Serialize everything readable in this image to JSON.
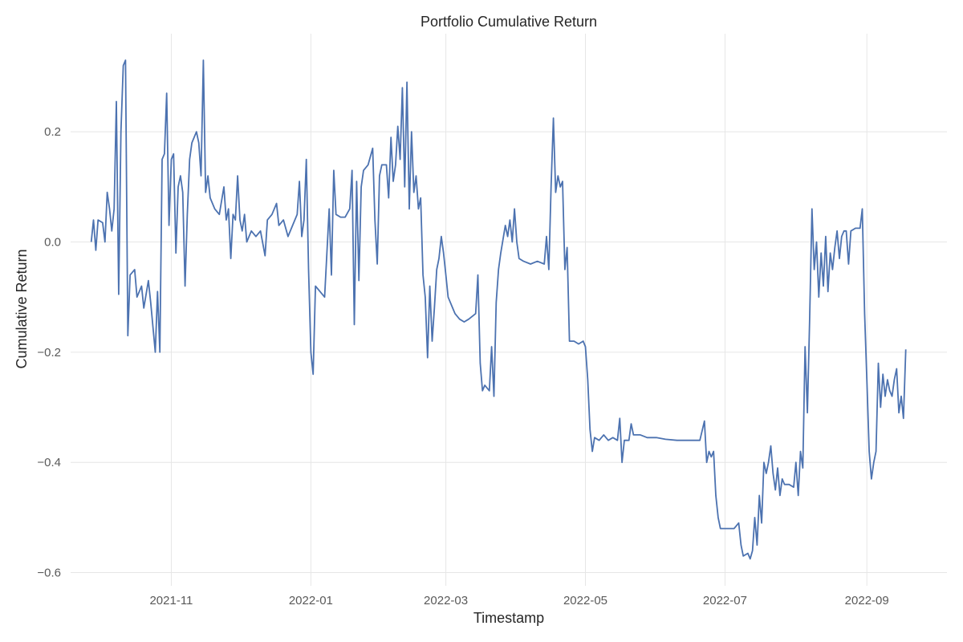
{
  "chart_data": {
    "type": "line",
    "title": "Portfolio Cumulative Return",
    "xlabel": "Timestamp",
    "ylabel": "Cumulative Return",
    "xlim": [
      "2021-09-18",
      "2022-10-06"
    ],
    "ylim": [
      -0.624,
      0.378
    ],
    "x_ticks": [
      "2021-11-01",
      "2022-01-01",
      "2022-03-01",
      "2022-05-01",
      "2022-07-01",
      "2022-09-01"
    ],
    "x_tick_labels": [
      "2021-11",
      "2022-01",
      "2022-03",
      "2022-05",
      "2022-07",
      "2022-09"
    ],
    "y_ticks": [
      0.2,
      0.0,
      -0.2,
      -0.4,
      -0.6
    ],
    "y_tick_labels": [
      "0.2",
      "0.0",
      "−0.2",
      "−0.4",
      "−0.6"
    ],
    "grid": true,
    "colors": {
      "line": "#4c72b0",
      "grid": "#e6e6e6"
    },
    "series": [
      {
        "values": [
          [
            "2021-09-27",
            0.0
          ],
          [
            "2021-09-28",
            0.04
          ],
          [
            "2021-09-29",
            -0.015
          ],
          [
            "2021-09-30",
            0.04
          ],
          [
            "2021-10-02",
            0.035
          ],
          [
            "2021-10-03",
            0.0
          ],
          [
            "2021-10-04",
            0.09
          ],
          [
            "2021-10-05",
            0.06
          ],
          [
            "2021-10-06",
            0.02
          ],
          [
            "2021-10-07",
            0.06
          ],
          [
            "2021-10-08",
            0.255
          ],
          [
            "2021-10-09",
            -0.095
          ],
          [
            "2021-10-10",
            0.2
          ],
          [
            "2021-10-11",
            0.32
          ],
          [
            "2021-10-12",
            0.33
          ],
          [
            "2021-10-13",
            -0.17
          ],
          [
            "2021-10-14",
            -0.06
          ],
          [
            "2021-10-16",
            -0.05
          ],
          [
            "2021-10-17",
            -0.1
          ],
          [
            "2021-10-19",
            -0.08
          ],
          [
            "2021-10-20",
            -0.12
          ],
          [
            "2021-10-22",
            -0.07
          ],
          [
            "2021-10-23",
            -0.11
          ],
          [
            "2021-10-25",
            -0.2
          ],
          [
            "2021-10-26",
            -0.09
          ],
          [
            "2021-10-27",
            -0.2
          ],
          [
            "2021-10-28",
            0.15
          ],
          [
            "2021-10-29",
            0.16
          ],
          [
            "2021-10-30",
            0.27
          ],
          [
            "2021-10-31",
            0.03
          ],
          [
            "2021-11-01",
            0.15
          ],
          [
            "2021-11-02",
            0.16
          ],
          [
            "2021-11-03",
            -0.02
          ],
          [
            "2021-11-04",
            0.1
          ],
          [
            "2021-11-05",
            0.12
          ],
          [
            "2021-11-06",
            0.09
          ],
          [
            "2021-11-07",
            -0.08
          ],
          [
            "2021-11-08",
            0.05
          ],
          [
            "2021-11-09",
            0.15
          ],
          [
            "2021-11-10",
            0.18
          ],
          [
            "2021-11-12",
            0.2
          ],
          [
            "2021-11-13",
            0.18
          ],
          [
            "2021-11-14",
            0.12
          ],
          [
            "2021-11-15",
            0.33
          ],
          [
            "2021-11-16",
            0.09
          ],
          [
            "2021-11-17",
            0.12
          ],
          [
            "2021-11-18",
            0.08
          ],
          [
            "2021-11-20",
            0.06
          ],
          [
            "2021-11-22",
            0.05
          ],
          [
            "2021-11-24",
            0.1
          ],
          [
            "2021-11-25",
            0.04
          ],
          [
            "2021-11-26",
            0.06
          ],
          [
            "2021-11-27",
            -0.03
          ],
          [
            "2021-11-28",
            0.05
          ],
          [
            "2021-11-29",
            0.04
          ],
          [
            "2021-11-30",
            0.12
          ],
          [
            "2021-12-01",
            0.04
          ],
          [
            "2021-12-02",
            0.02
          ],
          [
            "2021-12-03",
            0.05
          ],
          [
            "2021-12-04",
            0.0
          ],
          [
            "2021-12-06",
            0.02
          ],
          [
            "2021-12-08",
            0.01
          ],
          [
            "2021-12-10",
            0.02
          ],
          [
            "2021-12-12",
            -0.025
          ],
          [
            "2021-12-13",
            0.04
          ],
          [
            "2021-12-15",
            0.05
          ],
          [
            "2021-12-17",
            0.07
          ],
          [
            "2021-12-18",
            0.03
          ],
          [
            "2021-12-20",
            0.04
          ],
          [
            "2021-12-22",
            0.01
          ],
          [
            "2021-12-24",
            0.03
          ],
          [
            "2021-12-26",
            0.05
          ],
          [
            "2021-12-27",
            0.11
          ],
          [
            "2021-12-28",
            0.01
          ],
          [
            "2021-12-29",
            0.04
          ],
          [
            "2021-12-30",
            0.15
          ],
          [
            "2021-12-31",
            -0.05
          ],
          [
            "2022-01-01",
            -0.2
          ],
          [
            "2022-01-02",
            -0.24
          ],
          [
            "2022-01-03",
            -0.08
          ],
          [
            "2022-01-05",
            -0.09
          ],
          [
            "2022-01-07",
            -0.1
          ],
          [
            "2022-01-09",
            0.06
          ],
          [
            "2022-01-10",
            -0.06
          ],
          [
            "2022-01-11",
            0.13
          ],
          [
            "2022-01-12",
            0.05
          ],
          [
            "2022-01-14",
            0.045
          ],
          [
            "2022-01-16",
            0.045
          ],
          [
            "2022-01-18",
            0.06
          ],
          [
            "2022-01-19",
            0.13
          ],
          [
            "2022-01-20",
            -0.15
          ],
          [
            "2022-01-21",
            0.11
          ],
          [
            "2022-01-22",
            -0.07
          ],
          [
            "2022-01-23",
            0.1
          ],
          [
            "2022-01-24",
            0.13
          ],
          [
            "2022-01-26",
            0.14
          ],
          [
            "2022-01-28",
            0.17
          ],
          [
            "2022-01-29",
            0.04
          ],
          [
            "2022-01-30",
            -0.04
          ],
          [
            "2022-01-31",
            0.12
          ],
          [
            "2022-02-01",
            0.14
          ],
          [
            "2022-02-03",
            0.14
          ],
          [
            "2022-02-04",
            0.08
          ],
          [
            "2022-02-05",
            0.19
          ],
          [
            "2022-02-06",
            0.11
          ],
          [
            "2022-02-07",
            0.14
          ],
          [
            "2022-02-08",
            0.21
          ],
          [
            "2022-02-09",
            0.15
          ],
          [
            "2022-02-10",
            0.28
          ],
          [
            "2022-02-11",
            0.1
          ],
          [
            "2022-02-12",
            0.29
          ],
          [
            "2022-02-13",
            0.06
          ],
          [
            "2022-02-14",
            0.2
          ],
          [
            "2022-02-15",
            0.09
          ],
          [
            "2022-02-16",
            0.12
          ],
          [
            "2022-02-17",
            0.06
          ],
          [
            "2022-02-18",
            0.08
          ],
          [
            "2022-02-19",
            -0.06
          ],
          [
            "2022-02-20",
            -0.1
          ],
          [
            "2022-02-21",
            -0.21
          ],
          [
            "2022-02-22",
            -0.08
          ],
          [
            "2022-02-23",
            -0.18
          ],
          [
            "2022-02-24",
            -0.12
          ],
          [
            "2022-02-25",
            -0.05
          ],
          [
            "2022-02-26",
            -0.03
          ],
          [
            "2022-02-27",
            0.01
          ],
          [
            "2022-02-28",
            -0.02
          ],
          [
            "2022-03-01",
            -0.06
          ],
          [
            "2022-03-02",
            -0.1
          ],
          [
            "2022-03-04",
            -0.12
          ],
          [
            "2022-03-05",
            -0.13
          ],
          [
            "2022-03-07",
            -0.14
          ],
          [
            "2022-03-09",
            -0.145
          ],
          [
            "2022-03-11",
            -0.14
          ],
          [
            "2022-03-14",
            -0.13
          ],
          [
            "2022-03-15",
            -0.06
          ],
          [
            "2022-03-16",
            -0.22
          ],
          [
            "2022-03-17",
            -0.27
          ],
          [
            "2022-03-18",
            -0.26
          ],
          [
            "2022-03-20",
            -0.27
          ],
          [
            "2022-03-21",
            -0.19
          ],
          [
            "2022-03-22",
            -0.28
          ],
          [
            "2022-03-23",
            -0.11
          ],
          [
            "2022-03-24",
            -0.05
          ],
          [
            "2022-03-25",
            -0.02
          ],
          [
            "2022-03-27",
            0.03
          ],
          [
            "2022-03-28",
            0.01
          ],
          [
            "2022-03-29",
            0.04
          ],
          [
            "2022-03-30",
            0.0
          ],
          [
            "2022-03-31",
            0.06
          ],
          [
            "2022-04-01",
            0.0
          ],
          [
            "2022-04-02",
            -0.03
          ],
          [
            "2022-04-04",
            -0.035
          ],
          [
            "2022-04-07",
            -0.04
          ],
          [
            "2022-04-10",
            -0.035
          ],
          [
            "2022-04-13",
            -0.04
          ],
          [
            "2022-04-14",
            0.01
          ],
          [
            "2022-04-15",
            -0.05
          ],
          [
            "2022-04-16",
            0.1
          ],
          [
            "2022-04-17",
            0.225
          ],
          [
            "2022-04-18",
            0.09
          ],
          [
            "2022-04-19",
            0.12
          ],
          [
            "2022-04-20",
            0.1
          ],
          [
            "2022-04-21",
            0.11
          ],
          [
            "2022-04-22",
            -0.05
          ],
          [
            "2022-04-23",
            -0.01
          ],
          [
            "2022-04-24",
            -0.18
          ],
          [
            "2022-04-26",
            -0.18
          ],
          [
            "2022-04-28",
            -0.185
          ],
          [
            "2022-04-30",
            -0.18
          ],
          [
            "2022-05-01",
            -0.19
          ],
          [
            "2022-05-02",
            -0.25
          ],
          [
            "2022-05-03",
            -0.34
          ],
          [
            "2022-05-04",
            -0.38
          ],
          [
            "2022-05-05",
            -0.355
          ],
          [
            "2022-05-07",
            -0.36
          ],
          [
            "2022-05-09",
            -0.35
          ],
          [
            "2022-05-11",
            -0.36
          ],
          [
            "2022-05-13",
            -0.355
          ],
          [
            "2022-05-15",
            -0.36
          ],
          [
            "2022-05-16",
            -0.32
          ],
          [
            "2022-05-17",
            -0.4
          ],
          [
            "2022-05-18",
            -0.36
          ],
          [
            "2022-05-20",
            -0.36
          ],
          [
            "2022-05-21",
            -0.33
          ],
          [
            "2022-05-22",
            -0.35
          ],
          [
            "2022-05-25",
            -0.35
          ],
          [
            "2022-05-28",
            -0.355
          ],
          [
            "2022-06-01",
            -0.355
          ],
          [
            "2022-06-05",
            -0.358
          ],
          [
            "2022-06-10",
            -0.36
          ],
          [
            "2022-06-15",
            -0.36
          ],
          [
            "2022-06-20",
            -0.36
          ],
          [
            "2022-06-22",
            -0.325
          ],
          [
            "2022-06-23",
            -0.4
          ],
          [
            "2022-06-24",
            -0.38
          ],
          [
            "2022-06-25",
            -0.39
          ],
          [
            "2022-06-26",
            -0.38
          ],
          [
            "2022-06-27",
            -0.46
          ],
          [
            "2022-06-28",
            -0.5
          ],
          [
            "2022-06-29",
            -0.52
          ],
          [
            "2022-07-01",
            -0.52
          ],
          [
            "2022-07-03",
            -0.52
          ],
          [
            "2022-07-05",
            -0.52
          ],
          [
            "2022-07-07",
            -0.51
          ],
          [
            "2022-07-08",
            -0.55
          ],
          [
            "2022-07-09",
            -0.57
          ],
          [
            "2022-07-11",
            -0.565
          ],
          [
            "2022-07-12",
            -0.575
          ],
          [
            "2022-07-13",
            -0.56
          ],
          [
            "2022-07-14",
            -0.5
          ],
          [
            "2022-07-15",
            -0.55
          ],
          [
            "2022-07-16",
            -0.46
          ],
          [
            "2022-07-17",
            -0.51
          ],
          [
            "2022-07-18",
            -0.4
          ],
          [
            "2022-07-19",
            -0.42
          ],
          [
            "2022-07-20",
            -0.4
          ],
          [
            "2022-07-21",
            -0.37
          ],
          [
            "2022-07-22",
            -0.42
          ],
          [
            "2022-07-23",
            -0.45
          ],
          [
            "2022-07-24",
            -0.41
          ],
          [
            "2022-07-25",
            -0.46
          ],
          [
            "2022-07-26",
            -0.43
          ],
          [
            "2022-07-27",
            -0.44
          ],
          [
            "2022-07-29",
            -0.44
          ],
          [
            "2022-07-31",
            -0.445
          ],
          [
            "2022-08-01",
            -0.4
          ],
          [
            "2022-08-02",
            -0.46
          ],
          [
            "2022-08-03",
            -0.38
          ],
          [
            "2022-08-04",
            -0.41
          ],
          [
            "2022-08-05",
            -0.19
          ],
          [
            "2022-08-06",
            -0.31
          ],
          [
            "2022-08-07",
            -0.14
          ],
          [
            "2022-08-08",
            0.06
          ],
          [
            "2022-08-09",
            -0.05
          ],
          [
            "2022-08-10",
            0.0
          ],
          [
            "2022-08-11",
            -0.1
          ],
          [
            "2022-08-12",
            -0.02
          ],
          [
            "2022-08-13",
            -0.08
          ],
          [
            "2022-08-14",
            0.01
          ],
          [
            "2022-08-15",
            -0.09
          ],
          [
            "2022-08-16",
            -0.02
          ],
          [
            "2022-08-17",
            -0.05
          ],
          [
            "2022-08-18",
            -0.01
          ],
          [
            "2022-08-19",
            0.02
          ],
          [
            "2022-08-20",
            -0.03
          ],
          [
            "2022-08-21",
            0.01
          ],
          [
            "2022-08-22",
            0.02
          ],
          [
            "2022-08-23",
            0.02
          ],
          [
            "2022-08-24",
            -0.04
          ],
          [
            "2022-08-25",
            0.02
          ],
          [
            "2022-08-27",
            0.025
          ],
          [
            "2022-08-29",
            0.025
          ],
          [
            "2022-08-30",
            0.06
          ],
          [
            "2022-08-31",
            -0.13
          ],
          [
            "2022-09-01",
            -0.25
          ],
          [
            "2022-09-02",
            -0.38
          ],
          [
            "2022-09-03",
            -0.43
          ],
          [
            "2022-09-04",
            -0.4
          ],
          [
            "2022-09-05",
            -0.38
          ],
          [
            "2022-09-06",
            -0.22
          ],
          [
            "2022-09-07",
            -0.3
          ],
          [
            "2022-09-08",
            -0.24
          ],
          [
            "2022-09-09",
            -0.28
          ],
          [
            "2022-09-10",
            -0.25
          ],
          [
            "2022-09-11",
            -0.27
          ],
          [
            "2022-09-12",
            -0.28
          ],
          [
            "2022-09-13",
            -0.25
          ],
          [
            "2022-09-14",
            -0.23
          ],
          [
            "2022-09-15",
            -0.31
          ],
          [
            "2022-09-16",
            -0.28
          ],
          [
            "2022-09-17",
            -0.32
          ],
          [
            "2022-09-18",
            -0.195
          ]
        ]
      }
    ]
  }
}
